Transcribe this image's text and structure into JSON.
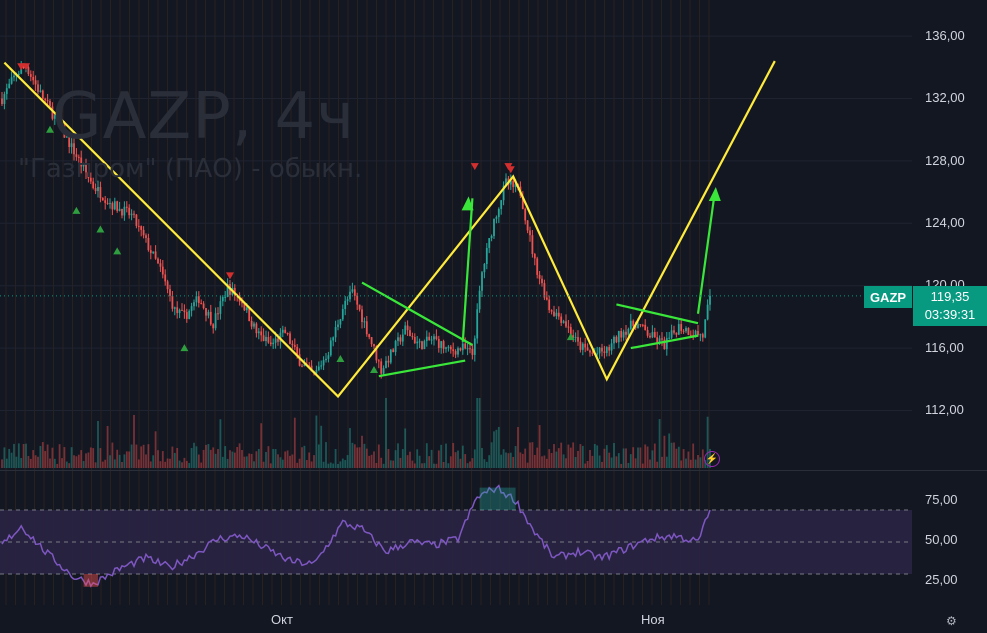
{
  "chart_data": {
    "type": "candlestick",
    "watermark": {
      "title": "GAZP, 4ч",
      "subtitle": "\"Газпром\" (ПАО) - обыкн."
    },
    "price_axis": {
      "ticks": [
        "136,00",
        "132,00",
        "128,00",
        "124,00",
        "120,00",
        "116,00",
        "112,00"
      ],
      "range": [
        109.5,
        138
      ]
    },
    "rsi_axis": {
      "ticks": [
        "75,00",
        "50,00",
        "25,00"
      ],
      "band": [
        30,
        70
      ]
    },
    "time_axis": {
      "ticks": [
        "Окт",
        "Ноя"
      ]
    },
    "last": {
      "ticker": "GAZP",
      "price": "119,35",
      "countdown": "03:39:31",
      "value": 119.35
    },
    "anchors": [
      {
        "i": 0,
        "p": 132.0
      },
      {
        "i": 6,
        "p": 133.6
      },
      {
        "i": 10,
        "p": 134.1
      },
      {
        "i": 16,
        "p": 132.3
      },
      {
        "i": 22,
        "p": 130.8
      },
      {
        "i": 30,
        "p": 128.6
      },
      {
        "i": 38,
        "p": 126.4
      },
      {
        "i": 46,
        "p": 125.2
      },
      {
        "i": 54,
        "p": 124.5
      },
      {
        "i": 60,
        "p": 122.8
      },
      {
        "i": 66,
        "p": 121.0
      },
      {
        "i": 72,
        "p": 118.4
      },
      {
        "i": 76,
        "p": 118.0
      },
      {
        "i": 82,
        "p": 119.2
      },
      {
        "i": 88,
        "p": 117.6
      },
      {
        "i": 94,
        "p": 119.9
      },
      {
        "i": 100,
        "p": 119.0
      },
      {
        "i": 106,
        "p": 117.0
      },
      {
        "i": 112,
        "p": 116.2
      },
      {
        "i": 118,
        "p": 117.0
      },
      {
        "i": 124,
        "p": 115.2
      },
      {
        "i": 130,
        "p": 114.2
      },
      {
        "i": 136,
        "p": 115.8
      },
      {
        "i": 142,
        "p": 118.6
      },
      {
        "i": 146,
        "p": 119.6
      },
      {
        "i": 152,
        "p": 117.2
      },
      {
        "i": 158,
        "p": 114.6
      },
      {
        "i": 162,
        "p": 115.6
      },
      {
        "i": 168,
        "p": 117.2
      },
      {
        "i": 174,
        "p": 116.2
      },
      {
        "i": 180,
        "p": 116.6
      },
      {
        "i": 186,
        "p": 115.8
      },
      {
        "i": 192,
        "p": 116.0
      },
      {
        "i": 196,
        "p": 115.6
      },
      {
        "i": 200,
        "p": 120.8
      },
      {
        "i": 205,
        "p": 124.2
      },
      {
        "i": 210,
        "p": 126.6
      },
      {
        "i": 216,
        "p": 126.0
      },
      {
        "i": 222,
        "p": 121.5
      },
      {
        "i": 228,
        "p": 118.6
      },
      {
        "i": 234,
        "p": 117.8
      },
      {
        "i": 240,
        "p": 116.2
      },
      {
        "i": 246,
        "p": 115.6
      },
      {
        "i": 252,
        "p": 115.8
      },
      {
        "i": 258,
        "p": 117.0
      },
      {
        "i": 264,
        "p": 117.6
      },
      {
        "i": 270,
        "p": 116.8
      },
      {
        "i": 276,
        "p": 116.2
      },
      {
        "i": 282,
        "p": 117.4
      },
      {
        "i": 288,
        "p": 117.0
      },
      {
        "i": 292,
        "p": 116.8
      },
      {
        "i": 295,
        "p": 119.35
      }
    ],
    "rsi": [
      {
        "i": 0,
        "v": 48
      },
      {
        "i": 8,
        "v": 60
      },
      {
        "i": 18,
        "v": 44
      },
      {
        "i": 30,
        "v": 28
      },
      {
        "i": 38,
        "v": 24
      },
      {
        "i": 50,
        "v": 34
      },
      {
        "i": 60,
        "v": 40
      },
      {
        "i": 70,
        "v": 34
      },
      {
        "i": 80,
        "v": 42
      },
      {
        "i": 90,
        "v": 52
      },
      {
        "i": 100,
        "v": 54
      },
      {
        "i": 110,
        "v": 46
      },
      {
        "i": 120,
        "v": 38
      },
      {
        "i": 130,
        "v": 36
      },
      {
        "i": 142,
        "v": 62
      },
      {
        "i": 150,
        "v": 58
      },
      {
        "i": 160,
        "v": 44
      },
      {
        "i": 170,
        "v": 50
      },
      {
        "i": 180,
        "v": 48
      },
      {
        "i": 190,
        "v": 52
      },
      {
        "i": 198,
        "v": 78
      },
      {
        "i": 206,
        "v": 84
      },
      {
        "i": 214,
        "v": 76
      },
      {
        "i": 222,
        "v": 56
      },
      {
        "i": 230,
        "v": 40
      },
      {
        "i": 240,
        "v": 44
      },
      {
        "i": 250,
        "v": 40
      },
      {
        "i": 260,
        "v": 46
      },
      {
        "i": 270,
        "v": 52
      },
      {
        "i": 280,
        "v": 54
      },
      {
        "i": 290,
        "v": 50
      },
      {
        "i": 295,
        "v": 70
      }
    ],
    "patterns": {
      "yellow": [
        [
          1,
          134.3
        ],
        [
          140,
          112.9
        ],
        [
          213,
          127.0
        ],
        [
          252,
          114.0
        ],
        [
          322,
          134.4
        ]
      ],
      "green_lines": [
        [
          [
            150,
            120.2
          ],
          [
            196,
            116.2
          ]
        ],
        [
          [
            157,
            114.2
          ],
          [
            193,
            115.2
          ]
        ],
        [
          [
            192,
            116.4
          ],
          [
            196,
            125.6
          ]
        ],
        [
          [
            256,
            118.8
          ],
          [
            290,
            117.6
          ]
        ],
        [
          [
            262,
            116.0
          ],
          [
            290,
            116.8
          ]
        ],
        [
          [
            290,
            118.2
          ],
          [
            297,
            126.0
          ]
        ]
      ],
      "arrow_heads": [
        [
          194,
          125.6
        ],
        [
          297,
          126.2
        ]
      ]
    },
    "signals": {
      "sell": [
        [
          8,
          134.0
        ],
        [
          10,
          134.0
        ],
        [
          95,
          120.6
        ],
        [
          197,
          127.6
        ],
        [
          211,
          127.6
        ],
        [
          212,
          127.4
        ]
      ],
      "buy": [
        [
          20,
          130.0
        ],
        [
          31,
          124.8
        ],
        [
          41,
          123.6
        ],
        [
          48,
          122.2
        ],
        [
          76,
          116.0
        ],
        [
          141,
          115.3
        ],
        [
          155,
          114.6
        ],
        [
          237,
          116.7
        ]
      ]
    }
  },
  "icons": {
    "lightning": "lightning-icon",
    "settings": "gear-icon"
  },
  "colors": {
    "background": "#131722",
    "up": "#26a69a",
    "down": "#ef5350",
    "pattern": "#ffeb3b",
    "flag": "#39e639",
    "rsi": "#7e57c2",
    "rsi_band": "#2a2343"
  }
}
